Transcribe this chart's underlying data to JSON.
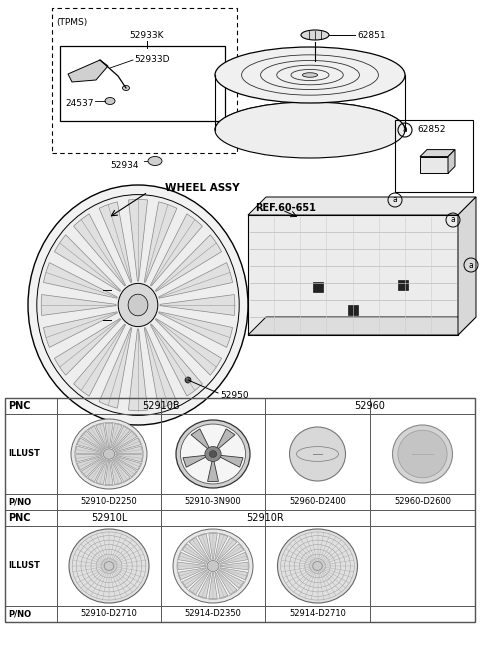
{
  "bg_color": "#ffffff",
  "line_color": "#000000",
  "table_row1": {
    "pnc_labels": [
      "52910B",
      "52960"
    ],
    "pno_labels": [
      "52910-D2250",
      "52910-3N900",
      "52960-D2400",
      "52960-D2600"
    ]
  },
  "table_row2": {
    "pnc_labels": [
      "52910L",
      "52910R"
    ],
    "pno_labels": [
      "52910-D2710",
      "52914-D2350",
      "52914-D2710"
    ]
  },
  "part_labels": {
    "tpms": "(TPMS)",
    "p52933K": "52933K",
    "p52933D": "52933D",
    "p24537": "24537",
    "p52934": "52934",
    "p62851": "62851",
    "p62852": "62852",
    "p52950": "52950",
    "wheel_assy": "WHEEL ASSY",
    "ref": "REF.60-651",
    "label_a": "a"
  }
}
